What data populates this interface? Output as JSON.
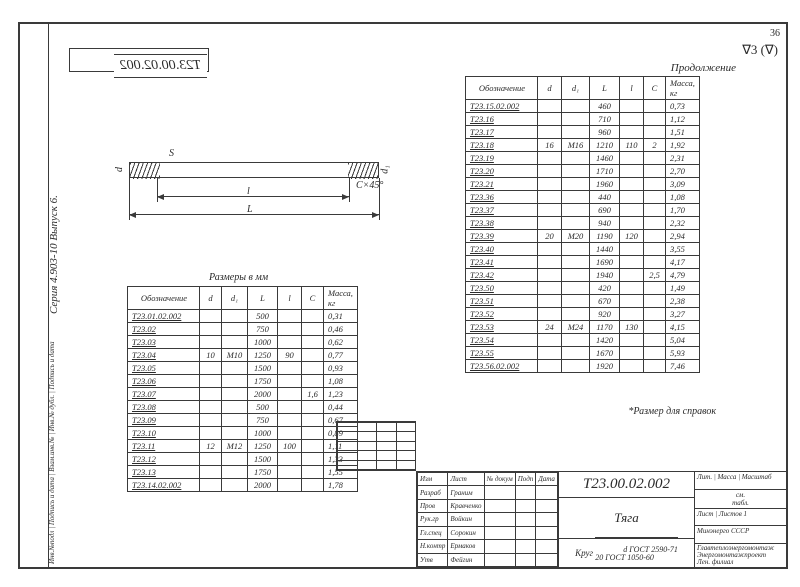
{
  "page_number": "36",
  "surface_mark": "∇3 (∇)",
  "continuation": "Продолжение",
  "sidebar_series": "Серия 4.903-10   Выпуск 6.",
  "sidebar_sign": "Инв.№подл | Подпись и дата | Взам.инв.№ | Инв.№ дубл. | Подпись и дата",
  "mirror_code": "Т23.00.02.002",
  "diagram": {
    "d": "d",
    "d1": "d₁",
    "L": "L",
    "l": "l",
    "s": "S",
    "chamfer": "C×45°"
  },
  "table_headers": [
    "Обозначение",
    "d",
    "d₁",
    "L",
    "l",
    "C",
    "Масса,\nкг"
  ],
  "table1": {
    "caption": "Размеры в мм",
    "rows": [
      {
        "code": "Т23.01.02.002",
        "d": "",
        "d1": "",
        "L": "500",
        "l": "",
        "C": "",
        "m": "0,31"
      },
      {
        "code": "Т23.02",
        "d": "",
        "d1": "",
        "L": "750",
        "l": "",
        "C": "",
        "m": "0,46"
      },
      {
        "code": "Т23.03",
        "d": "",
        "d1": "",
        "L": "1000",
        "l": "",
        "C": "",
        "m": "0,62"
      },
      {
        "code": "Т23.04",
        "d": "10",
        "d1": "М10",
        "L": "1250",
        "l": "90",
        "C": "",
        "m": "0,77"
      },
      {
        "code": "Т23.05",
        "d": "",
        "d1": "",
        "L": "1500",
        "l": "",
        "C": "",
        "m": "0,93"
      },
      {
        "code": "Т23.06",
        "d": "",
        "d1": "",
        "L": "1750",
        "l": "",
        "C": "",
        "m": "1,08"
      },
      {
        "code": "Т23.07",
        "d": "",
        "d1": "",
        "L": "2000",
        "l": "",
        "C": "1,6",
        "m": "1,23"
      },
      {
        "code": "Т23.08",
        "d": "",
        "d1": "",
        "L": "500",
        "l": "",
        "C": "",
        "m": "0,44"
      },
      {
        "code": "Т23.09",
        "d": "",
        "d1": "",
        "L": "750",
        "l": "",
        "C": "",
        "m": "0,67"
      },
      {
        "code": "Т23.10",
        "d": "",
        "d1": "",
        "L": "1000",
        "l": "",
        "C": "",
        "m": "0,89"
      },
      {
        "code": "Т23.11",
        "d": "12",
        "d1": "М12",
        "L": "1250",
        "l": "100",
        "C": "",
        "m": "1,11"
      },
      {
        "code": "Т23.12",
        "d": "",
        "d1": "",
        "L": "1500",
        "l": "",
        "C": "",
        "m": "1,33"
      },
      {
        "code": "Т23.13",
        "d": "",
        "d1": "",
        "L": "1750",
        "l": "",
        "C": "",
        "m": "1,55"
      },
      {
        "code": "Т23.14.02.002",
        "d": "",
        "d1": "",
        "L": "2000",
        "l": "",
        "C": "",
        "m": "1,78"
      }
    ]
  },
  "table2": {
    "rows": [
      {
        "code": "Т23.15.02.002",
        "d": "",
        "d1": "",
        "L": "460",
        "l": "",
        "C": "",
        "m": "0,73"
      },
      {
        "code": "Т23.16",
        "d": "",
        "d1": "",
        "L": "710",
        "l": "",
        "C": "",
        "m": "1,12"
      },
      {
        "code": "Т23.17",
        "d": "",
        "d1": "",
        "L": "960",
        "l": "",
        "C": "",
        "m": "1,51"
      },
      {
        "code": "Т23.18",
        "d": "16",
        "d1": "М16",
        "L": "1210",
        "l": "110",
        "C": "2",
        "m": "1,92"
      },
      {
        "code": "Т23.19",
        "d": "",
        "d1": "",
        "L": "1460",
        "l": "",
        "C": "",
        "m": "2,31"
      },
      {
        "code": "Т23.20",
        "d": "",
        "d1": "",
        "L": "1710",
        "l": "",
        "C": "",
        "m": "2,70"
      },
      {
        "code": "Т23.21",
        "d": "",
        "d1": "",
        "L": "1960",
        "l": "",
        "C": "",
        "m": "3,09"
      },
      {
        "code": "Т23.36",
        "d": "",
        "d1": "",
        "L": "440",
        "l": "",
        "C": "",
        "m": "1,08"
      },
      {
        "code": "Т23.37",
        "d": "",
        "d1": "",
        "L": "690",
        "l": "",
        "C": "",
        "m": "1,70"
      },
      {
        "code": "Т23.38",
        "d": "",
        "d1": "",
        "L": "940",
        "l": "",
        "C": "",
        "m": "2,32"
      },
      {
        "code": "Т23.39",
        "d": "20",
        "d1": "М20",
        "L": "1190",
        "l": "120",
        "C": "",
        "m": "2,94"
      },
      {
        "code": "Т23.40",
        "d": "",
        "d1": "",
        "L": "1440",
        "l": "",
        "C": "",
        "m": "3,55"
      },
      {
        "code": "Т23.41",
        "d": "",
        "d1": "",
        "L": "1690",
        "l": "",
        "C": "",
        "m": "4,17"
      },
      {
        "code": "Т23.42",
        "d": "",
        "d1": "",
        "L": "1940",
        "l": "",
        "C": "2,5",
        "m": "4,79"
      },
      {
        "code": "Т23.50",
        "d": "",
        "d1": "",
        "L": "420",
        "l": "",
        "C": "",
        "m": "1,49"
      },
      {
        "code": "Т23.51",
        "d": "",
        "d1": "",
        "L": "670",
        "l": "",
        "C": "",
        "m": "2,38"
      },
      {
        "code": "Т23.52",
        "d": "",
        "d1": "",
        "L": "920",
        "l": "",
        "C": "",
        "m": "3,27"
      },
      {
        "code": "Т23.53",
        "d": "24",
        "d1": "М24",
        "L": "1170",
        "l": "130",
        "C": "",
        "m": "4,15"
      },
      {
        "code": "Т23.54",
        "d": "",
        "d1": "",
        "L": "1420",
        "l": "",
        "C": "",
        "m": "5,04"
      },
      {
        "code": "Т23.55",
        "d": "",
        "d1": "",
        "L": "1670",
        "l": "",
        "C": "",
        "m": "5,93"
      },
      {
        "code": "Т23.56.02.002",
        "d": "",
        "d1": "",
        "L": "1920",
        "l": "",
        "C": "",
        "m": "7,46"
      }
    ]
  },
  "note": "*Размер для справок",
  "title_block": {
    "code": "Т23.00.02.002",
    "name": "Тяга",
    "material_label": "Круг",
    "material": "d ГОСТ 2590-71\n20 ГОСТ 1050-60",
    "org1": "Минэнерго СССР",
    "org2": "Главтеплоэнергомонтаж\nЭнергомонтажпроект\nЛен. филиал",
    "mass_label": "Лит. | Масса | Масштаб",
    "mass_val": "см.\nтабл.",
    "sheet": "Лист",
    "sheets": "Листов 1",
    "copy": "Копировал",
    "format": "Формат 12",
    "roles": [
      [
        "Изм",
        "Лист",
        "№ докум",
        "Подп",
        "Дата"
      ],
      [
        "Разраб",
        "Граним",
        "",
        "",
        ""
      ],
      [
        "Пров",
        "Кравченко",
        "",
        "",
        ""
      ],
      [
        "Рук.гр",
        "Войкин",
        "",
        "",
        ""
      ],
      [
        "Гл.спец",
        "Сорокин",
        "",
        "",
        ""
      ],
      [
        "Н.контр",
        "Ермаков",
        "",
        "",
        ""
      ],
      [
        "Утв",
        "Фейгин",
        "",
        "",
        ""
      ]
    ]
  }
}
